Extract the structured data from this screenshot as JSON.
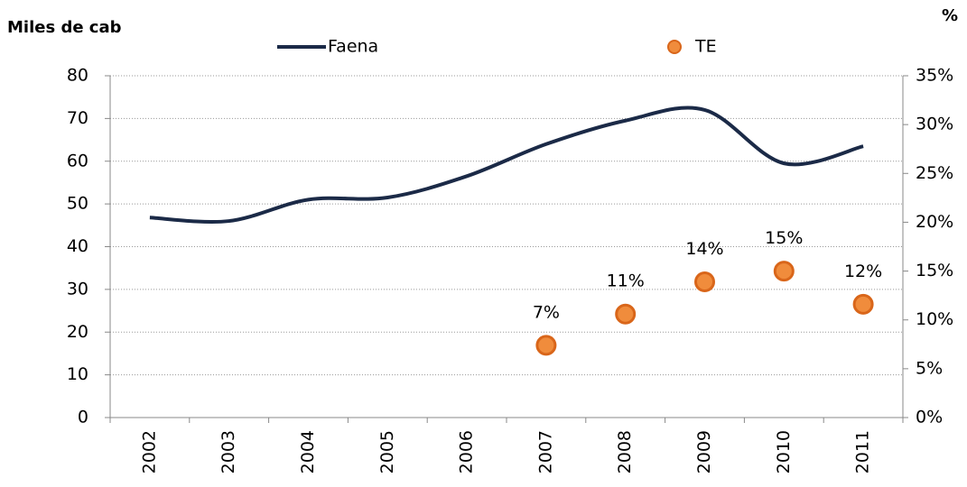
{
  "chart_data": {
    "type": "line",
    "y_label": "Miles de cab",
    "y2_label": "%",
    "categories": [
      "2002",
      "2003",
      "2004",
      "2005",
      "2006",
      "2007",
      "2008",
      "2009",
      "2010",
      "2011"
    ],
    "series": [
      {
        "name": "Faena",
        "color": "#1b2a47",
        "type": "line",
        "axis": "y",
        "values": [
          46.8,
          46,
          51,
          51.5,
          56.5,
          64,
          69.5,
          72,
          59.5,
          63.5
        ]
      },
      {
        "name": "TE",
        "color": "#f08c3c",
        "type": "scatter",
        "axis": "y2",
        "values": [
          null,
          null,
          null,
          null,
          null,
          7.4,
          10.6,
          13.9,
          15,
          11.6
        ],
        "value_labels": [
          null,
          null,
          null,
          null,
          null,
          "7%",
          "11%",
          "14%",
          "15%",
          "12%"
        ]
      }
    ],
    "ylim": [
      0,
      80
    ],
    "yticks": [
      0,
      10,
      20,
      30,
      40,
      50,
      60,
      70,
      80
    ],
    "y2lim": [
      0,
      35
    ],
    "y2ticks": [
      {
        "value": 0,
        "label": "0%"
      },
      {
        "value": 5,
        "label": "5%"
      },
      {
        "value": 10,
        "label": "10%"
      },
      {
        "value": 15,
        "label": "15%"
      },
      {
        "value": 20,
        "label": "20%"
      },
      {
        "value": 25,
        "label": "25%"
      },
      {
        "value": 30,
        "label": "30%"
      },
      {
        "value": 35,
        "label": "35%"
      }
    ],
    "grid": true
  }
}
